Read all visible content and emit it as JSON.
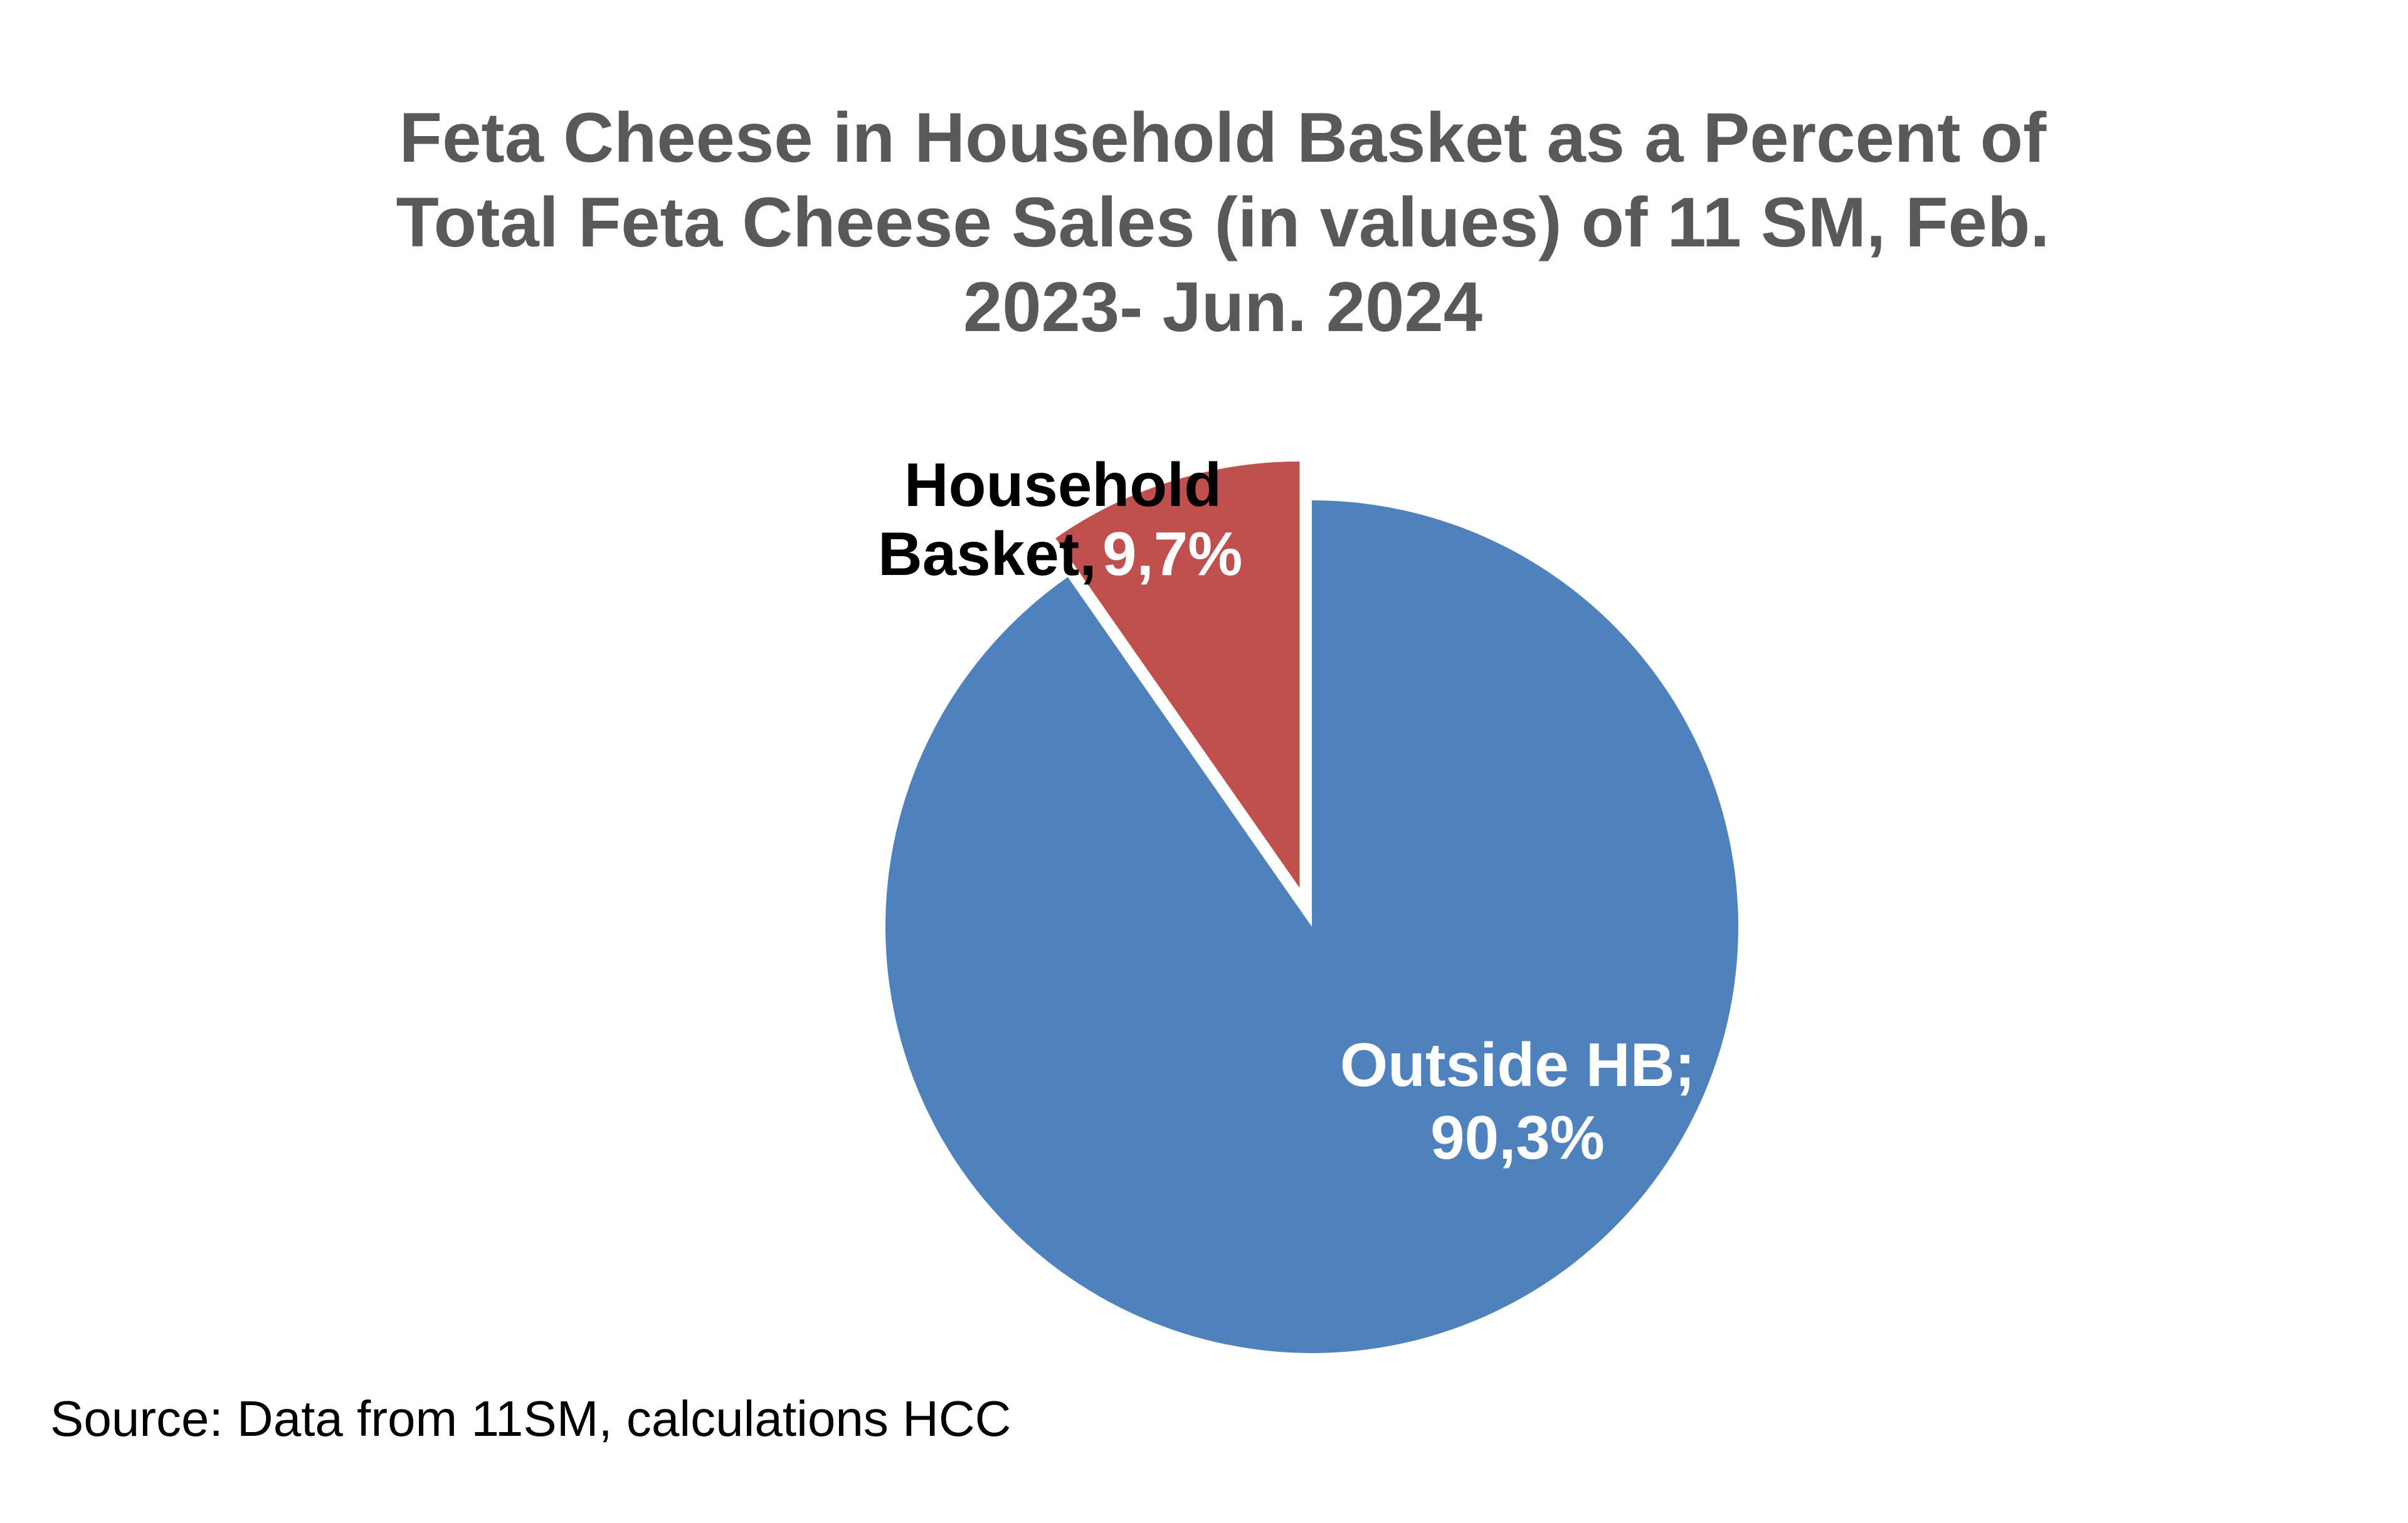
{
  "chart_data": {
    "type": "pie",
    "title_lines": [
      "Feta Cheese in Household Basket  as a Percent of",
      "Total Feta Cheese Sales (in values) of 11 SM, Feb.",
      "2023- Jun. 2024"
    ],
    "slices": [
      {
        "label": "Household Basket",
        "value": 9.7,
        "display": "9,7%",
        "color": "#C0504D",
        "exploded": true
      },
      {
        "label": "Outside HB",
        "value": 90.3,
        "display": "90,3%",
        "color": "#4F81BD",
        "exploded": false
      }
    ],
    "data_labels": {
      "household_line1": "Household",
      "household_line2a": "Basket,",
      "household_line2b": "9,7%",
      "outside_line1": "Outside HB;",
      "outside_line2": "90,3%"
    },
    "source": "Source: Data  from 11SM,  calculations  HCC"
  }
}
